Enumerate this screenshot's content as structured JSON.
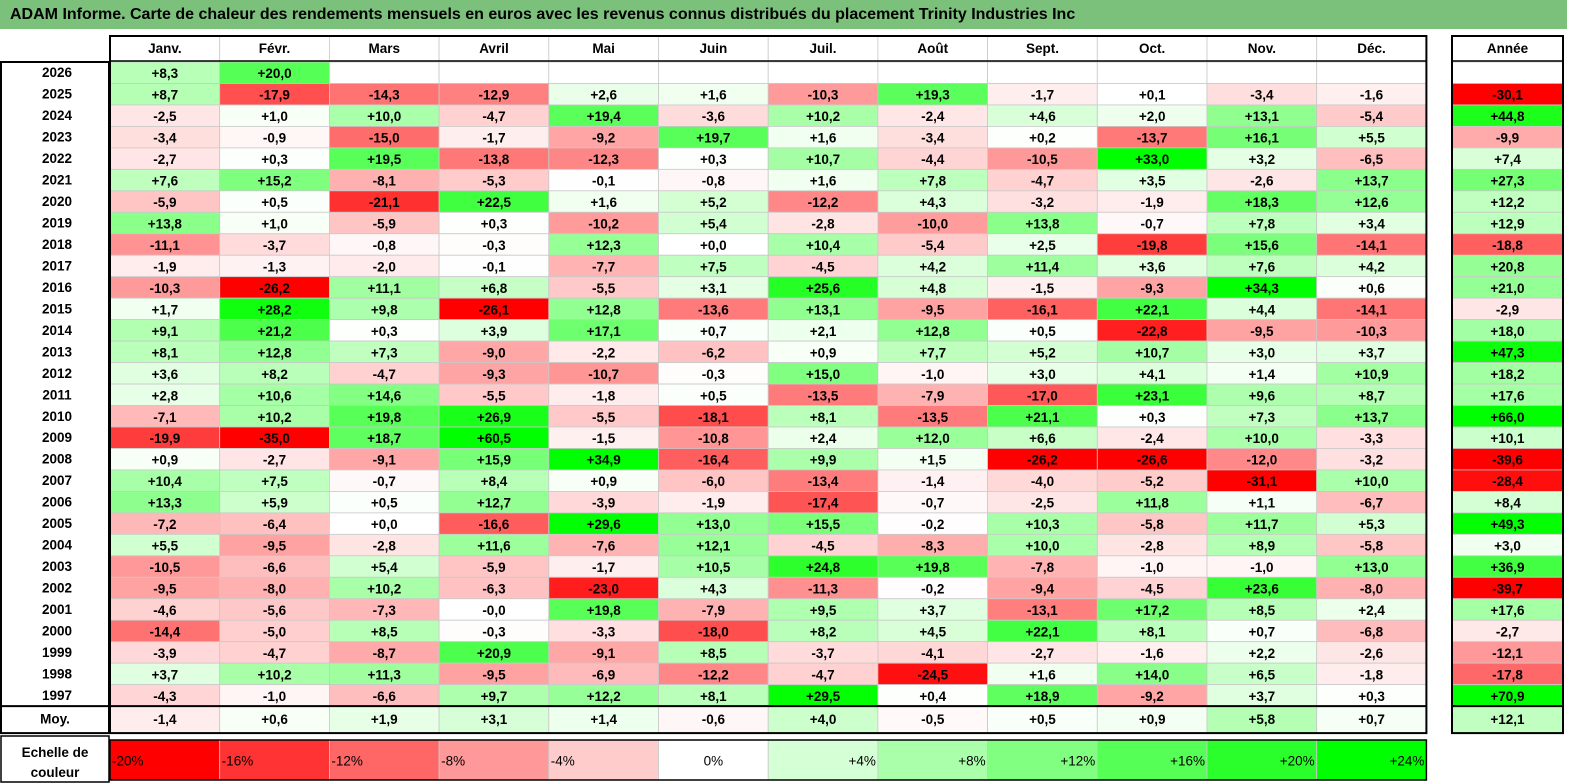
{
  "title": "ADAM Informe. Carte de chaleur des rendements mensuels en euros avec les revenus connus distribués du placement Trinity Industries Inc",
  "chart_data": {
    "type": "heatmap",
    "title": "ADAM Informe. Carte de chaleur des rendements mensuels en euros avec les revenus connus distribués du placement Trinity Industries Inc",
    "columns": [
      "Janv.",
      "Févr.",
      "Mars",
      "Avril",
      "Mai",
      "Juin",
      "Juil.",
      "Août",
      "Sept.",
      "Oct.",
      "Nov.",
      "Déc."
    ],
    "year_header": "Année",
    "rows": [
      {
        "label": "2026",
        "values": [
          "+8,3",
          "+20,0",
          "",
          "",
          "",
          "",
          "",
          "",
          "",
          "",
          "",
          ""
        ],
        "year": ""
      },
      {
        "label": "2025",
        "values": [
          "+8,7",
          "-17,9",
          "-14,3",
          "-12,9",
          "+2,6",
          "+1,6",
          "-10,3",
          "+19,3",
          "-1,7",
          "+0,1",
          "-3,4",
          "-1,6"
        ],
        "year": "-30,1"
      },
      {
        "label": "2024",
        "values": [
          "-2,5",
          "+1,0",
          "+10,0",
          "-4,7",
          "+19,4",
          "-3,6",
          "+10,2",
          "-2,4",
          "+4,6",
          "+2,0",
          "+13,1",
          "-5,4"
        ],
        "year": "+44,8"
      },
      {
        "label": "2023",
        "values": [
          "-3,4",
          "-0,9",
          "-15,0",
          "-1,7",
          "-9,2",
          "+19,7",
          "+1,6",
          "-3,4",
          "+0,2",
          "-13,7",
          "+16,1",
          "+5,5"
        ],
        "year": "-9,9"
      },
      {
        "label": "2022",
        "values": [
          "-2,7",
          "+0,3",
          "+19,5",
          "-13,8",
          "-12,3",
          "+0,3",
          "+10,7",
          "-4,4",
          "-10,5",
          "+33,0",
          "+3,2",
          "-6,5"
        ],
        "year": "+7,4"
      },
      {
        "label": "2021",
        "values": [
          "+7,6",
          "+15,2",
          "-8,1",
          "-5,3",
          "-0,1",
          "-0,8",
          "+1,6",
          "+7,8",
          "-4,7",
          "+3,5",
          "-2,6",
          "+13,7"
        ],
        "year": "+27,3"
      },
      {
        "label": "2020",
        "values": [
          "-5,9",
          "+0,5",
          "-21,1",
          "+22,5",
          "+1,6",
          "+5,2",
          "-12,2",
          "+4,3",
          "-3,2",
          "-1,9",
          "+18,3",
          "+12,6"
        ],
        "year": "+12,2"
      },
      {
        "label": "2019",
        "values": [
          "+13,8",
          "+1,0",
          "-5,9",
          "+0,3",
          "-10,2",
          "+5,4",
          "-2,8",
          "-10,0",
          "+13,8",
          "-0,7",
          "+7,8",
          "+3,4"
        ],
        "year": "+12,9"
      },
      {
        "label": "2018",
        "values": [
          "-11,1",
          "-3,7",
          "-0,8",
          "-0,3",
          "+12,3",
          "+0,0",
          "+10,4",
          "-5,4",
          "+2,5",
          "-19,8",
          "+15,6",
          "-14,1"
        ],
        "year": "-18,8"
      },
      {
        "label": "2017",
        "values": [
          "-1,9",
          "-1,3",
          "-2,0",
          "-0,1",
          "-7,7",
          "+7,5",
          "-4,5",
          "+4,2",
          "+11,4",
          "+3,6",
          "+7,6",
          "+4,2"
        ],
        "year": "+20,8"
      },
      {
        "label": "2016",
        "values": [
          "-10,3",
          "-26,2",
          "+11,1",
          "+6,8",
          "-5,5",
          "+3,1",
          "+25,6",
          "+4,8",
          "-1,5",
          "-9,3",
          "+34,3",
          "+0,6"
        ],
        "year": "+21,0"
      },
      {
        "label": "2015",
        "values": [
          "+1,7",
          "+28,2",
          "+9,8",
          "-26,1",
          "+12,8",
          "-13,6",
          "+13,1",
          "-9,5",
          "-16,1",
          "+22,1",
          "+4,4",
          "-14,1"
        ],
        "year": "-2,9"
      },
      {
        "label": "2014",
        "values": [
          "+9,1",
          "+21,2",
          "+0,3",
          "+3,9",
          "+17,1",
          "+0,7",
          "+2,1",
          "+12,8",
          "+0,5",
          "-22,8",
          "-9,5",
          "-10,3"
        ],
        "year": "+18,0"
      },
      {
        "label": "2013",
        "values": [
          "+8,1",
          "+12,8",
          "+7,3",
          "-9,0",
          "-2,2",
          "-6,2",
          "+0,9",
          "+7,7",
          "+5,2",
          "+10,7",
          "+3,0",
          "+3,7"
        ],
        "year": "+47,3"
      },
      {
        "label": "2012",
        "values": [
          "+3,6",
          "+8,2",
          "-4,7",
          "-9,3",
          "-10,7",
          "-0,3",
          "+15,0",
          "-1,0",
          "+3,0",
          "+4,1",
          "+1,4",
          "+10,9"
        ],
        "year": "+18,2"
      },
      {
        "label": "2011",
        "values": [
          "+2,8",
          "+10,6",
          "+14,6",
          "-5,5",
          "-1,8",
          "+0,5",
          "-13,5",
          "-7,9",
          "-17,0",
          "+23,1",
          "+9,6",
          "+8,7"
        ],
        "year": "+17,6"
      },
      {
        "label": "2010",
        "values": [
          "-7,1",
          "+10,2",
          "+19,8",
          "+26,9",
          "-5,5",
          "-18,1",
          "+8,1",
          "-13,5",
          "+21,1",
          "+0,3",
          "+7,3",
          "+13,7"
        ],
        "year": "+66,0"
      },
      {
        "label": "2009",
        "values": [
          "-19,9",
          "-35,0",
          "+18,7",
          "+60,5",
          "-1,5",
          "-10,8",
          "+2,4",
          "+12,0",
          "+6,6",
          "-2,4",
          "+10,0",
          "-3,3"
        ],
        "year": "+10,1"
      },
      {
        "label": "2008",
        "values": [
          "+0,9",
          "-2,7",
          "-9,1",
          "+15,9",
          "+34,9",
          "-16,4",
          "+9,9",
          "+1,5",
          "-26,2",
          "-26,6",
          "-12,0",
          "-3,2"
        ],
        "year": "-39,6"
      },
      {
        "label": "2007",
        "values": [
          "+10,4",
          "+7,5",
          "-0,7",
          "+8,4",
          "+0,9",
          "-6,0",
          "-13,4",
          "-1,4",
          "-4,0",
          "-5,2",
          "-31,1",
          "+10,0"
        ],
        "year": "-28,4"
      },
      {
        "label": "2006",
        "values": [
          "+13,3",
          "+5,9",
          "+0,5",
          "+12,7",
          "-3,9",
          "-1,9",
          "-17,4",
          "-0,7",
          "-2,5",
          "+11,8",
          "+1,1",
          "-6,7"
        ],
        "year": "+8,4"
      },
      {
        "label": "2005",
        "values": [
          "-7,2",
          "-6,4",
          "+0,0",
          "-16,6",
          "+29,6",
          "+13,0",
          "+15,5",
          "-0,2",
          "+10,3",
          "-5,8",
          "+11,7",
          "+5,3"
        ],
        "year": "+49,3"
      },
      {
        "label": "2004",
        "values": [
          "+5,5",
          "-9,5",
          "-2,8",
          "+11,6",
          "-7,6",
          "+12,1",
          "-4,5",
          "-8,3",
          "+10,0",
          "-2,8",
          "+8,9",
          "-5,8"
        ],
        "year": "+3,0"
      },
      {
        "label": "2003",
        "values": [
          "-10,5",
          "-6,6",
          "+5,4",
          "-5,9",
          "-1,7",
          "+10,5",
          "+24,8",
          "+19,8",
          "-7,8",
          "-1,0",
          "-1,0",
          "+13,0"
        ],
        "year": "+36,9"
      },
      {
        "label": "2002",
        "values": [
          "-9,5",
          "-8,0",
          "+10,2",
          "-6,3",
          "-23,0",
          "+4,3",
          "-11,3",
          "-0,2",
          "-9,4",
          "-4,5",
          "+23,6",
          "-8,0"
        ],
        "year": "-39,7"
      },
      {
        "label": "2001",
        "values": [
          "-4,6",
          "-5,6",
          "-7,3",
          "-0,0",
          "+19,8",
          "-7,9",
          "+9,5",
          "+3,7",
          "-13,1",
          "+17,2",
          "+8,5",
          "+2,4"
        ],
        "year": "+17,6"
      },
      {
        "label": "2000",
        "values": [
          "-14,4",
          "-5,0",
          "+8,5",
          "-0,3",
          "-3,3",
          "-18,0",
          "+8,2",
          "+4,5",
          "+22,1",
          "+8,1",
          "+0,7",
          "-6,8"
        ],
        "year": "-2,7"
      },
      {
        "label": "1999",
        "values": [
          "-3,9",
          "-4,7",
          "-8,7",
          "+20,9",
          "-9,1",
          "+8,5",
          "-3,7",
          "-4,1",
          "-2,7",
          "-1,6",
          "+2,2",
          "-2,6"
        ],
        "year": "-12,1"
      },
      {
        "label": "1998",
        "values": [
          "+3,7",
          "+10,2",
          "+11,3",
          "-9,5",
          "-6,9",
          "-12,2",
          "-4,7",
          "-24,5",
          "+1,6",
          "+14,0",
          "+6,5",
          "-1,8"
        ],
        "year": "-17,8"
      },
      {
        "label": "1997",
        "values": [
          "-4,3",
          "-1,0",
          "-6,6",
          "+9,7",
          "+12,2",
          "+8,1",
          "+29,5",
          "+0,4",
          "+18,9",
          "-9,2",
          "+3,7",
          "+0,3"
        ],
        "year": "+70,9"
      }
    ],
    "average_row": {
      "label": "Moy.",
      "values": [
        "-1,4",
        "+0,6",
        "+1,9",
        "+3,1",
        "+1,4",
        "-0,6",
        "+4,0",
        "-0,5",
        "+0,5",
        "+0,9",
        "+5,8",
        "+0,7"
      ],
      "year": "+12,1"
    },
    "scale": {
      "label": "Echelle de couleur",
      "steps": [
        "-20%",
        "-16%",
        "-12%",
        "-8%",
        "-4%",
        "0%",
        "+4%",
        "+8%",
        "+12%",
        "+16%",
        "+20%",
        "+24%"
      ]
    },
    "colors": {
      "negative_max": "#ff0000",
      "positive_max": "#00ff00",
      "neutral": "#ffffff",
      "title_bar": "#7cc17b"
    }
  }
}
